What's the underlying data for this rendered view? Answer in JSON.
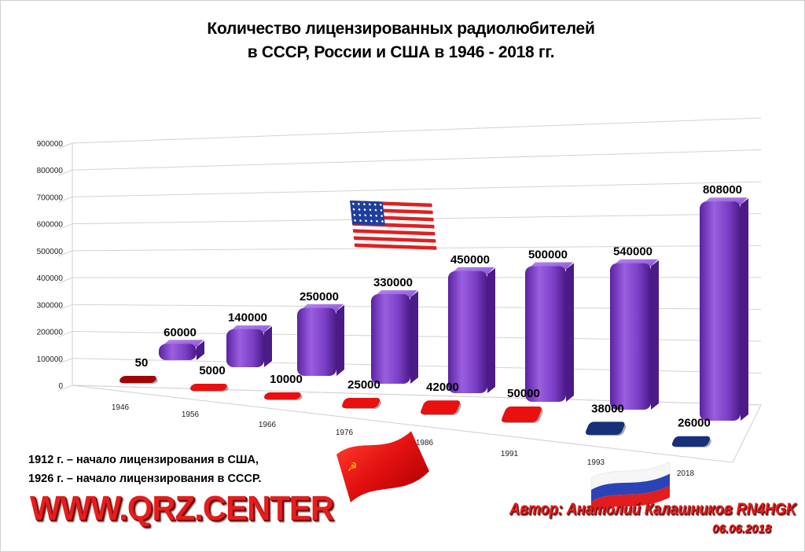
{
  "title": {
    "line1": "Количество лицензированных радиолюбителей",
    "line2": "в СССР, России и США в 1946 - 2018 гг."
  },
  "chart_data": {
    "type": "bar",
    "categories": [
      "1946",
      "1956",
      "1966",
      "1976",
      "1986",
      "1991",
      "1993",
      "2018"
    ],
    "series": [
      {
        "values": [
          60000,
          140000,
          250000,
          330000,
          450000,
          500000,
          540000,
          808000
        ],
        "color": "#7b3fc6"
      },
      {
        "values": [
          50,
          5000,
          10000,
          25000,
          42000,
          50000,
          38000,
          26000
        ],
        "colors": [
          "#a10606",
          "#ea1010",
          "#ea1010",
          "#ea1010",
          "#ea1010",
          "#ea1010",
          "#17307a",
          "#17307a"
        ]
      }
    ],
    "y_ticks": [
      "0",
      "100000",
      "200000",
      "300000",
      "400000",
      "500000",
      "600000",
      "700000",
      "800000",
      "900000"
    ],
    "ylim": [
      0,
      900000
    ],
    "grid": true,
    "bar_labels_series1": [
      "60000",
      "140000",
      "250000",
      "330000",
      "450000",
      "500000",
      "540000",
      "808000"
    ],
    "bar_labels_series2": [
      "50",
      "5000",
      "10000",
      "25000",
      "42000",
      "50000",
      "38000",
      "26000"
    ]
  },
  "flags": [
    "usa-flag-icon",
    "ussr-flag-icon",
    "russia-flag-icon"
  ],
  "note": {
    "line1": "1912 г. – начало лицензирования в США,",
    "line2": "1926 г. – начало лицензирования в СССР."
  },
  "site": "WWW.QRZ.CENTER",
  "author": "Автор: Анатолий Калашников RN4HGK",
  "date": "06.06.2018"
}
